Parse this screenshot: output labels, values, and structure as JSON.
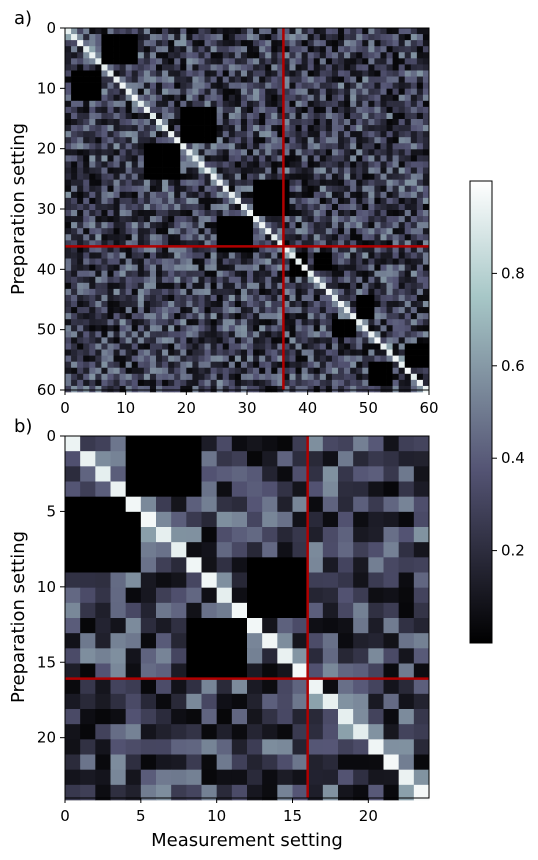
{
  "chart_data": [
    {
      "type": "heatmap",
      "panel_label": "a)",
      "ylabel": "Preparation setting",
      "xlabel": "",
      "x_ticks": [
        0,
        10,
        20,
        30,
        40,
        50,
        60
      ],
      "y_ticks": [
        0,
        10,
        20,
        30,
        40,
        50,
        60
      ],
      "xlim": [
        0,
        60
      ],
      "ylim": [
        60,
        0
      ],
      "n": 60,
      "red_lines": {
        "x": 36,
        "y": 36
      },
      "dark_blocks": [
        {
          "x": [
            1,
            6
          ],
          "y": [
            7,
            12
          ]
        },
        {
          "x": [
            6,
            12
          ],
          "y": [
            1,
            6
          ]
        },
        {
          "x": [
            13,
            19
          ],
          "y": [
            19,
            25
          ]
        },
        {
          "x": [
            19,
            25
          ],
          "y": [
            13,
            19
          ]
        },
        {
          "x": [
            25,
            31
          ],
          "y": [
            31,
            37
          ]
        },
        {
          "x": [
            31,
            37
          ],
          "y": [
            25,
            31
          ]
        },
        {
          "x": [
            37,
            40
          ],
          "y": [
            37,
            41
          ]
        },
        {
          "x": [
            41,
            44
          ],
          "y": [
            37,
            40
          ]
        },
        {
          "x": [
            44,
            48
          ],
          "y": [
            48,
            51
          ]
        },
        {
          "x": [
            48,
            51
          ],
          "y": [
            44,
            48
          ]
        },
        {
          "x": [
            50,
            54
          ],
          "y": [
            55,
            59
          ]
        },
        {
          "x": [
            56,
            60
          ],
          "y": [
            52,
            56
          ]
        }
      ],
      "value_range": [
        0,
        1
      ]
    },
    {
      "type": "heatmap",
      "panel_label": "b)",
      "ylabel": "Preparation setting",
      "xlabel": "Measurement setting",
      "x_ticks": [
        0,
        5,
        10,
        15,
        20
      ],
      "y_ticks": [
        0,
        5,
        10,
        15,
        20
      ],
      "xlim": [
        0,
        24
      ],
      "ylim": [
        24,
        0
      ],
      "n": 24,
      "red_lines": {
        "x": 16,
        "y": 16
      },
      "dark_blocks": [
        {
          "x": [
            0,
            5
          ],
          "y": [
            4,
            9
          ]
        },
        {
          "x": [
            4,
            9
          ],
          "y": [
            0,
            4
          ]
        },
        {
          "x": [
            8,
            12
          ],
          "y": [
            12,
            16
          ]
        },
        {
          "x": [
            12,
            16
          ],
          "y": [
            8,
            12
          ]
        }
      ],
      "value_range": [
        0,
        1
      ]
    }
  ],
  "colorbar": {
    "colormap": "bone",
    "ticks": [
      0.2,
      0.4,
      0.6,
      0.8
    ],
    "range": [
      0,
      1
    ]
  }
}
